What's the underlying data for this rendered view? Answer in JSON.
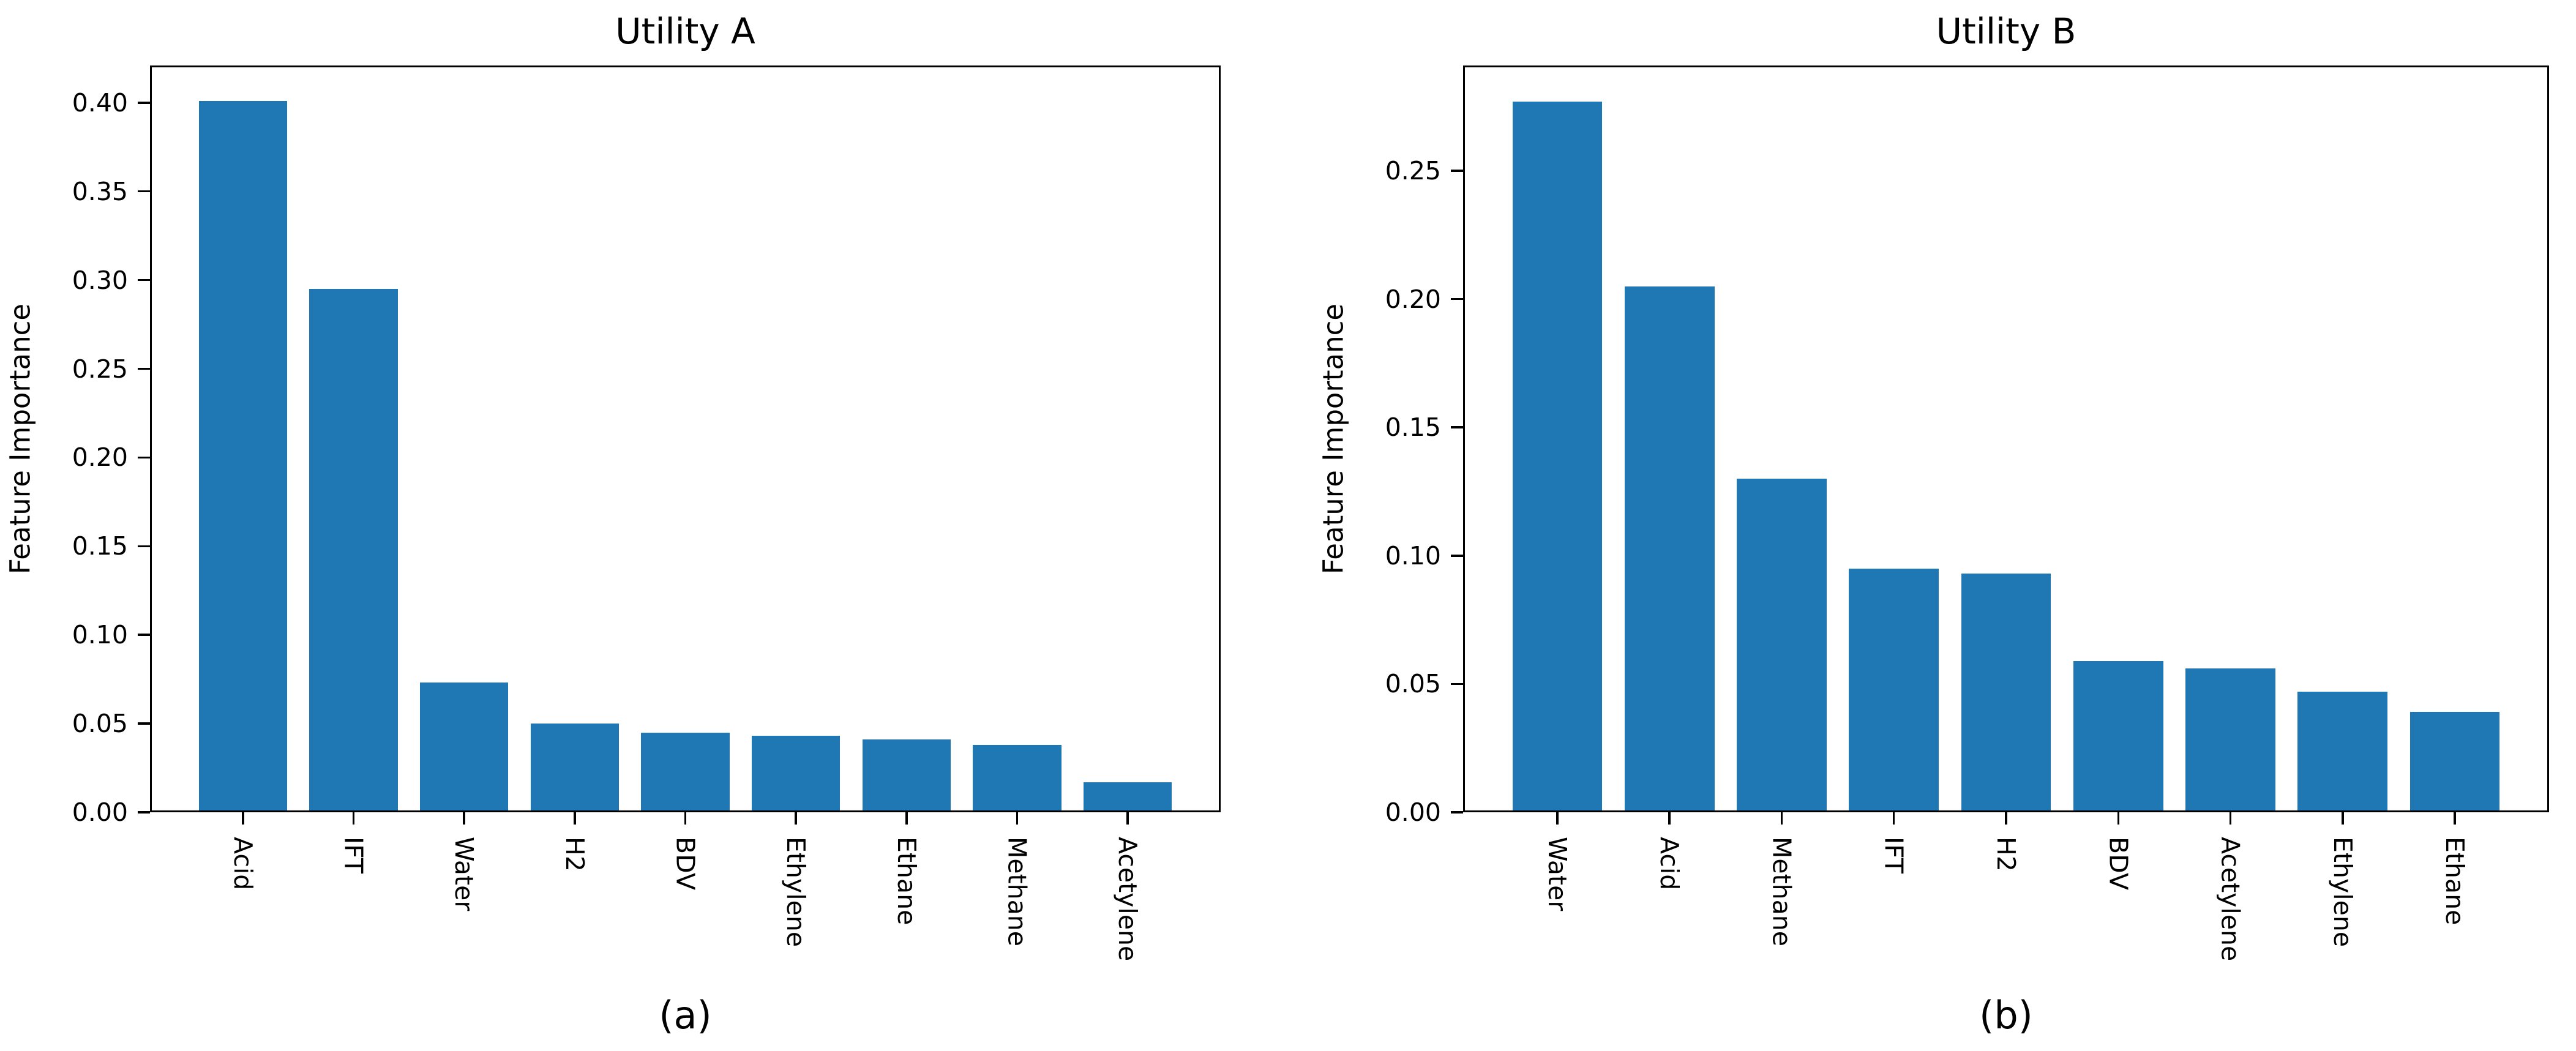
{
  "figure": {
    "background": "#ffffff",
    "text_color": "#000000",
    "spine_color": "#000000",
    "bar_color": "#1f77b4"
  },
  "chart_data": [
    {
      "type": "bar",
      "title": "Utility A",
      "caption": "(a)",
      "ylabel": "Feature Importance",
      "xlabel": "",
      "categories": [
        "Acid",
        "IFT",
        "Water",
        "H2",
        "BDV",
        "Ethylene",
        "Ethane",
        "Methane",
        "Acetylene"
      ],
      "values": [
        0.401,
        0.295,
        0.073,
        0.05,
        0.045,
        0.043,
        0.041,
        0.038,
        0.017
      ],
      "ytick_labels": [
        "0.00",
        "0.05",
        "0.10",
        "0.15",
        "0.20",
        "0.25",
        "0.30",
        "0.35",
        "0.40"
      ],
      "ylim": [
        0,
        0.421
      ],
      "grid": false,
      "legend": "none",
      "bar_color": "#1f77b4"
    },
    {
      "type": "bar",
      "title": "Utility B",
      "caption": "(b)",
      "ylabel": "Feature Importance",
      "xlabel": "",
      "categories": [
        "Water",
        "Acid",
        "Methane",
        "IFT",
        "H2",
        "BDV",
        "Acetylene",
        "Ethylene",
        "Ethane"
      ],
      "values": [
        0.277,
        0.205,
        0.13,
        0.095,
        0.093,
        0.059,
        0.056,
        0.047,
        0.039
      ],
      "ytick_labels": [
        "0.00",
        "0.05",
        "0.10",
        "0.15",
        "0.20",
        "0.25"
      ],
      "ylim": [
        0,
        0.291
      ],
      "grid": false,
      "legend": "none",
      "bar_color": "#1f77b4"
    }
  ]
}
